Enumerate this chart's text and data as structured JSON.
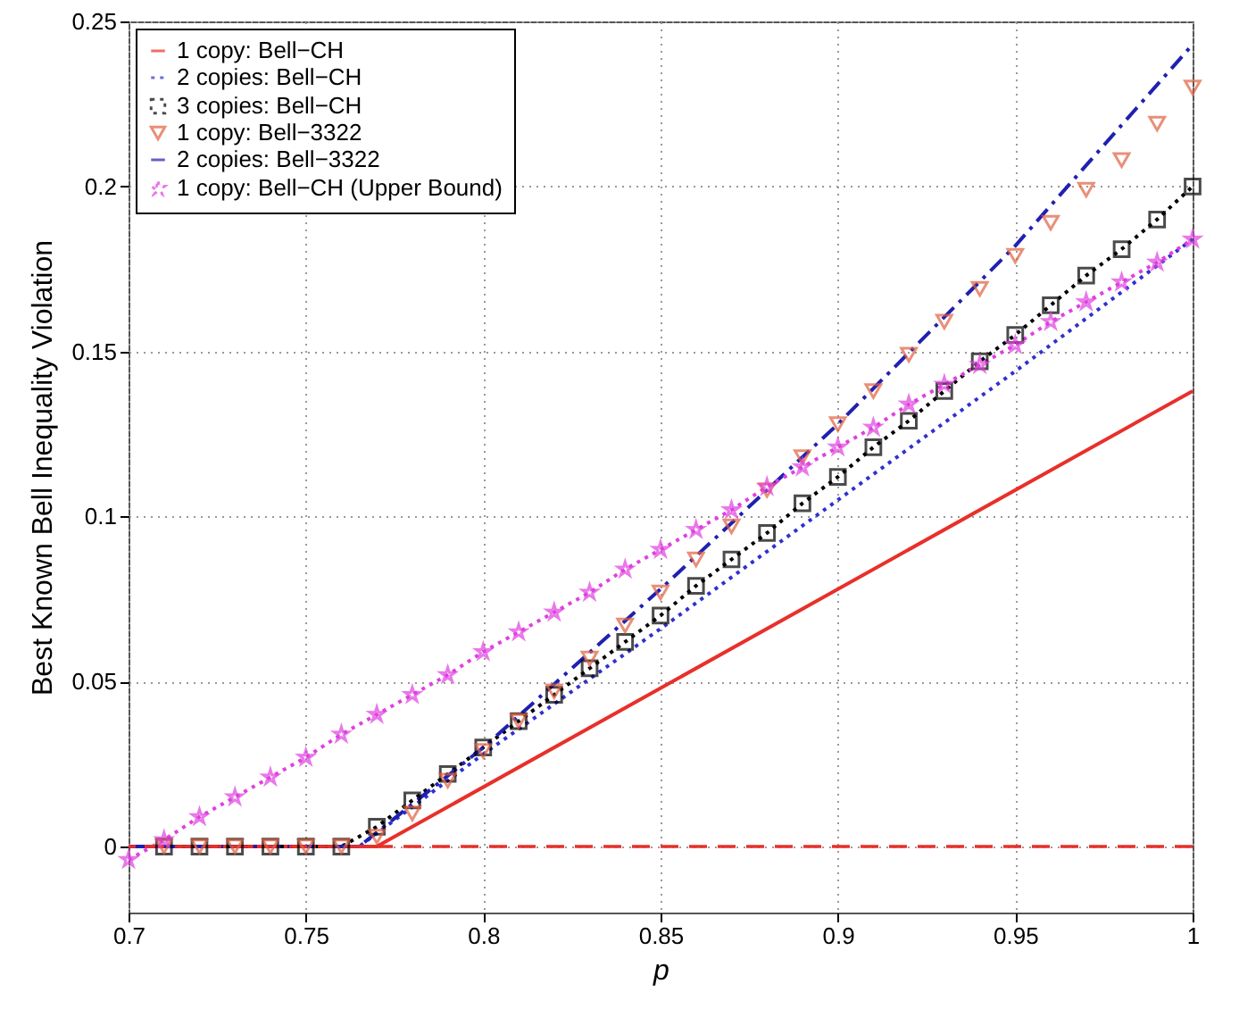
{
  "chart_data": {
    "type": "line",
    "xlabel": "p",
    "ylabel": "Best Known Bell Inequality Violation",
    "xlim": [
      0.7,
      1
    ],
    "ylim": [
      -0.02,
      0.25
    ],
    "xticks": [
      0.7,
      0.75,
      0.8,
      0.85,
      0.9,
      0.95,
      1
    ],
    "yticks": [
      0,
      0.05,
      0.1,
      0.15,
      0.2,
      0.25
    ],
    "grid": true,
    "legend": "top left",
    "ref_lines": [
      {
        "axis": "y",
        "value": 0,
        "color": "#e8302a",
        "line_style": "dashed"
      }
    ],
    "series": [
      {
        "name": "1 copy: Bell−CH",
        "color": "#e8302a",
        "type": "line",
        "line_style": "solid",
        "marker": "none",
        "x": [
          0.7,
          0.77,
          1.0
        ],
        "values": [
          0,
          0,
          0.138
        ]
      },
      {
        "name": "2 copies: Bell−CH",
        "color": "#3030d0",
        "type": "line",
        "line_style": "dotted",
        "marker": "none",
        "x": [
          0.7,
          0.765,
          0.8,
          0.85,
          0.9,
          0.95,
          1.0
        ],
        "values": [
          0,
          0,
          0.028,
          0.066,
          0.105,
          0.144,
          0.184
        ]
      },
      {
        "name": "3 copies: Bell−CH",
        "color": "#000000",
        "type": "line",
        "line_style": "dotted",
        "marker": "square",
        "x": [
          0.71,
          0.72,
          0.73,
          0.74,
          0.75,
          0.76,
          0.77,
          0.78,
          0.79,
          0.8,
          0.81,
          0.82,
          0.83,
          0.84,
          0.85,
          0.86,
          0.87,
          0.88,
          0.89,
          0.9,
          0.91,
          0.92,
          0.93,
          0.94,
          0.95,
          0.96,
          0.97,
          0.98,
          0.99,
          1.0
        ],
        "values": [
          0,
          0,
          0,
          0,
          0,
          0,
          0.006,
          0.014,
          0.022,
          0.03,
          0.038,
          0.046,
          0.054,
          0.062,
          0.07,
          0.079,
          0.087,
          0.095,
          0.104,
          0.112,
          0.121,
          0.129,
          0.138,
          0.147,
          0.155,
          0.164,
          0.173,
          0.181,
          0.19,
          0.2
        ]
      },
      {
        "name": "1 copy: Bell−3322",
        "color": "#e06040",
        "type": "scatter",
        "marker": "triangle",
        "x": [
          0.71,
          0.72,
          0.73,
          0.74,
          0.75,
          0.76,
          0.77,
          0.78,
          0.79,
          0.8,
          0.81,
          0.82,
          0.83,
          0.84,
          0.85,
          0.86,
          0.87,
          0.88,
          0.89,
          0.9,
          0.91,
          0.92,
          0.93,
          0.94,
          0.95,
          0.96,
          0.97,
          0.98,
          0.99,
          1.0
        ],
        "values": [
          0,
          0,
          0,
          0,
          0,
          0,
          0.003,
          0.01,
          0.02,
          0.029,
          0.038,
          0.047,
          0.057,
          0.067,
          0.077,
          0.087,
          0.097,
          0.108,
          0.118,
          0.128,
          0.138,
          0.149,
          0.159,
          0.169,
          0.179,
          0.189,
          0.199,
          0.208,
          0.219,
          0.23
        ]
      },
      {
        "name": "2 copies: Bell−3322",
        "color": "#2020b0",
        "type": "line",
        "line_style": "dashed",
        "marker": "none",
        "x": [
          0.7,
          0.765,
          0.8,
          0.85,
          0.9,
          0.95,
          1.0
        ],
        "values": [
          0,
          0,
          0.03,
          0.078,
          0.128,
          0.182,
          0.243
        ]
      },
      {
        "name": "1 copy: Bell−CH (Upper Bound)",
        "color": "#e040e0",
        "type": "line",
        "line_style": "dotted",
        "marker": "star",
        "x": [
          0.7,
          0.71,
          0.72,
          0.73,
          0.74,
          0.75,
          0.76,
          0.77,
          0.78,
          0.79,
          0.8,
          0.81,
          0.82,
          0.83,
          0.84,
          0.85,
          0.86,
          0.87,
          0.88,
          0.89,
          0.9,
          0.91,
          0.92,
          0.93,
          0.94,
          0.95,
          0.96,
          0.97,
          0.98,
          0.99,
          1.0
        ],
        "values": [
          -0.004,
          0.002,
          0.009,
          0.015,
          0.021,
          0.027,
          0.034,
          0.04,
          0.046,
          0.052,
          0.059,
          0.065,
          0.071,
          0.077,
          0.084,
          0.09,
          0.096,
          0.102,
          0.109,
          0.115,
          0.121,
          0.127,
          0.134,
          0.14,
          0.146,
          0.152,
          0.159,
          0.165,
          0.171,
          0.177,
          0.184
        ]
      }
    ]
  }
}
